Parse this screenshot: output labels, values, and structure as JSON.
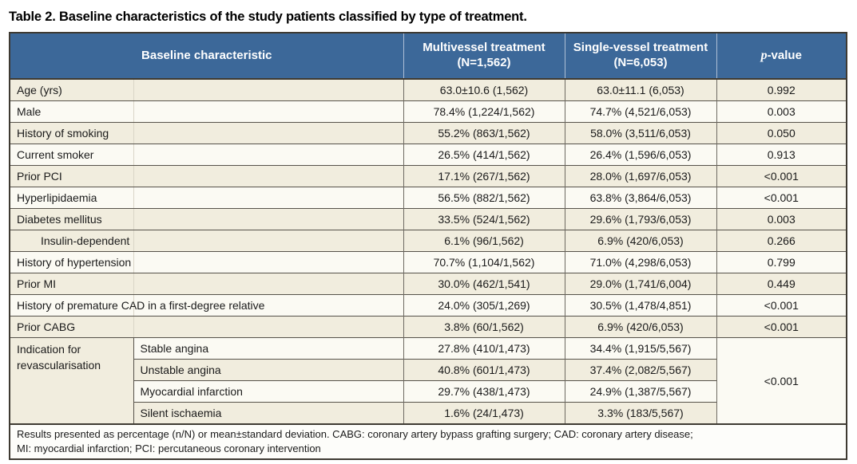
{
  "title": "Table 2. Baseline characteristics of the study patients classified by type of treatment.",
  "colors": {
    "header_bg": "#3c6899",
    "row_cream": "#f1edde",
    "row_white": "#fbfaf3",
    "outer_border": "#3e3a32",
    "row_border": "#56524a"
  },
  "table": {
    "headers": {
      "characteristic": "Baseline characteristic",
      "multivessel": "Multivessel treatment\n(N=1,562)",
      "single_vessel": "Single-vessel treatment\n(N=6,053)",
      "p_value_italic": "p",
      "p_value_rest": "-value"
    },
    "rows": [
      {
        "label": "Age (yrs)",
        "indent": false,
        "multivessel": "63.0±10.6 (1,562)",
        "single_vessel": "63.0±11.1 (6,053)",
        "p_value": "0.992",
        "shade": "cream"
      },
      {
        "label": "Male",
        "indent": false,
        "multivessel": "78.4% (1,224/1,562)",
        "single_vessel": "74.7% (4,521/6,053)",
        "p_value": "0.003",
        "shade": "white"
      },
      {
        "label": "History of smoking",
        "indent": false,
        "multivessel": "55.2% (863/1,562)",
        "single_vessel": "58.0% (3,511/6,053)",
        "p_value": "0.050",
        "shade": "cream"
      },
      {
        "label": "Current smoker",
        "indent": false,
        "multivessel": "26.5% (414/1,562)",
        "single_vessel": "26.4% (1,596/6,053)",
        "p_value": "0.913",
        "shade": "white"
      },
      {
        "label": "Prior PCI",
        "indent": false,
        "multivessel": "17.1% (267/1,562)",
        "single_vessel": "28.0% (1,697/6,053)",
        "p_value": "<0.001",
        "shade": "cream"
      },
      {
        "label": "Hyperlipidaemia",
        "indent": false,
        "multivessel": "56.5% (882/1,562)",
        "single_vessel": "63.8% (3,864/6,053)",
        "p_value": "<0.001",
        "shade": "white"
      },
      {
        "label": "Diabetes mellitus",
        "indent": false,
        "multivessel": "33.5% (524/1,562)",
        "single_vessel": "29.6% (1,793/6,053)",
        "p_value": "0.003",
        "shade": "cream"
      },
      {
        "label": "Insulin-dependent",
        "indent": true,
        "multivessel": "6.1% (96/1,562)",
        "single_vessel": "6.9% (420/6,053)",
        "p_value": "0.266",
        "shade": "cream"
      },
      {
        "label": "History of hypertension",
        "indent": false,
        "multivessel": "70.7% (1,104/1,562)",
        "single_vessel": "71.0% (4,298/6,053)",
        "p_value": "0.799",
        "shade": "white"
      },
      {
        "label": "Prior MI",
        "indent": false,
        "multivessel": "30.0% (462/1,541)",
        "single_vessel": "29.0% (1,741/6,004)",
        "p_value": "0.449",
        "shade": "cream"
      },
      {
        "label": "History of premature CAD in a first-degree relative",
        "indent": false,
        "multivessel": "24.0% (305/1,269)",
        "single_vessel": "30.5% (1,478/4,851)",
        "p_value": "<0.001",
        "shade": "white"
      },
      {
        "label": "Prior CABG",
        "indent": false,
        "multivessel": "3.8% (60/1,562)",
        "single_vessel": "6.9% (420/6,053)",
        "p_value": "<0.001",
        "shade": "cream"
      }
    ],
    "indication_group": {
      "label": "Indication for revascularisation",
      "p_value": "<0.001",
      "sub_rows": [
        {
          "label": "Stable angina",
          "multivessel": "27.8% (410/1,473)",
          "single_vessel": "34.4% (1,915/5,567)",
          "shade": "white"
        },
        {
          "label": "Unstable angina",
          "multivessel": "40.8% (601/1,473)",
          "single_vessel": "37.4% (2,082/5,567)",
          "shade": "cream"
        },
        {
          "label": "Myocardial infarction",
          "multivessel": "29.7% (438/1,473)",
          "single_vessel": "24.9% (1,387/5,567)",
          "shade": "white"
        },
        {
          "label": "Silent ischaemia",
          "multivessel": "1.6% (24/1,473)",
          "single_vessel": "3.3% (183/5,567)",
          "shade": "cream"
        }
      ]
    },
    "footnote": "Results presented as percentage (n/N) or mean±standard deviation. CABG: coronary artery bypass grafting surgery; CAD: coronary artery disease;\nMI: myocardial infarction; PCI: percutaneous coronary intervention"
  }
}
